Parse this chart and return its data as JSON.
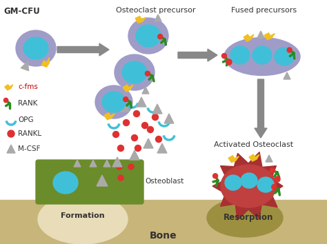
{
  "bg_color": "#ffffff",
  "bone_color": "#c8b57a",
  "bone_bump_formation": "#e8ddb8",
  "bone_bump_resorption": "#9c9040",
  "cell_purple": "#a09cc8",
  "cell_blue": "#40c0d8",
  "cell_dark_red": "#a83030",
  "cell_mid_red": "#c04040",
  "arrow_color": "#888888",
  "osteoblast_green": "#6b8c2a",
  "yellow_color": "#f0c020",
  "green_color": "#2a8c20",
  "red_color": "#e03030",
  "grey_color": "#aaaaaa",
  "text_color": "#333333",
  "title": "GM-CFU",
  "labels": {
    "osteoclast_precursor": "Osteoclast precursor",
    "fused_precursors": "Fused precursors",
    "activated_osteoclast": "Activated Osteoclast",
    "osteoblast": "Osteoblast",
    "formation": "Formation",
    "resorption": "Resorption",
    "bone": "Bone"
  },
  "legend": {
    "cfms": "c-fms",
    "rank": "RANK",
    "opg": "OPG",
    "rankl": "RANKL",
    "mcsf": "M-CSF"
  }
}
